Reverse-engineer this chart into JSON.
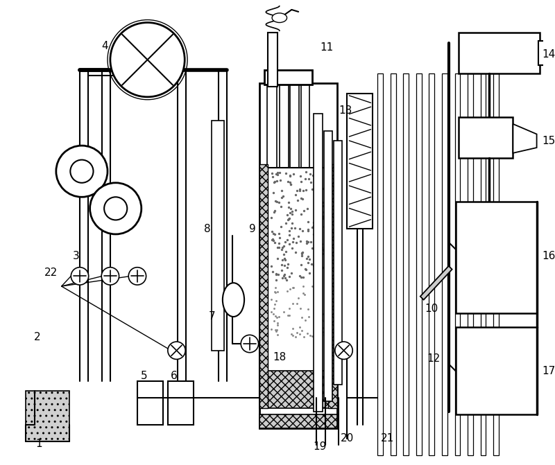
{
  "bg_color": "#ffffff",
  "fig_width": 8.0,
  "fig_height": 6.71,
  "label_fontsize": 11
}
